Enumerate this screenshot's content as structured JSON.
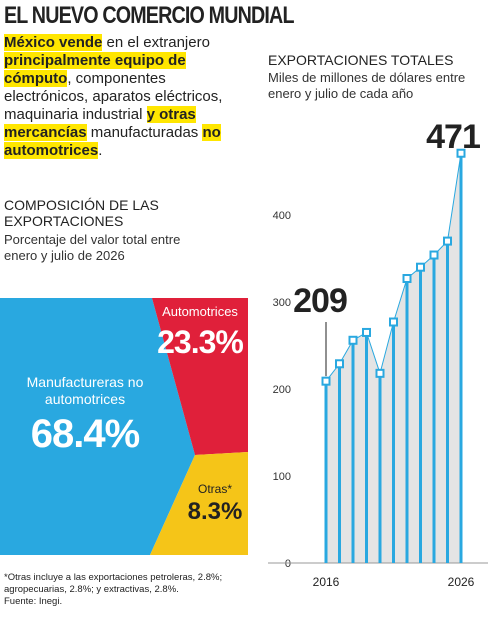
{
  "header": {
    "title": "EL NUEVO COMERCIO MUNDIAL",
    "intro": [
      "México vende",
      " en el extranjero ",
      "principalmente equipo de cómputo",
      ", componentes electrónicos, aparatos eléctricos, maquinaria industrial ",
      "y otras mercancías",
      " manufacturadas ",
      "no automotrices",
      "."
    ]
  },
  "chart_data": [
    {
      "type": "treemap",
      "title": "COMPOSICIÓN DE LAS EXPORTACIONES",
      "subtitle": "Porcentaje del valor total entre enero y julio de 2026",
      "series": [
        {
          "name": "Manufactureras no automotrices",
          "color": "#29a8e0",
          "values": [
            68.4
          ],
          "value_labels": [
            "68.4%"
          ]
        },
        {
          "name": "Automotrices",
          "color": "#e0203a",
          "values": [
            23.3
          ],
          "value_labels": [
            "23.3%"
          ]
        },
        {
          "name": "Otras*",
          "color": "#f5c518",
          "values": [
            8.3
          ],
          "value_labels": [
            "8.3%"
          ]
        }
      ]
    },
    {
      "type": "line",
      "title": "EXPORTACIONES TOTALES",
      "subtitle": "Miles de millones de dólares entre enero y julio de cada año",
      "categories": [
        "2016",
        null,
        null,
        null,
        null,
        null,
        null,
        null,
        null,
        null,
        "2026"
      ],
      "values": [
        209,
        229,
        256,
        265,
        218,
        277,
        327,
        340,
        354,
        370,
        471
      ],
      "color": "#29a8e0",
      "ylim": [
        0,
        480
      ],
      "yticks": [
        0,
        100,
        200,
        300,
        400
      ]
    }
  ],
  "footnote": "*Otras incluye a las exportaciones petroleras, 2.8%; agropecuarias, 2.8%; y extractivas, 2.8%.",
  "source": "Fuente: Inegi."
}
